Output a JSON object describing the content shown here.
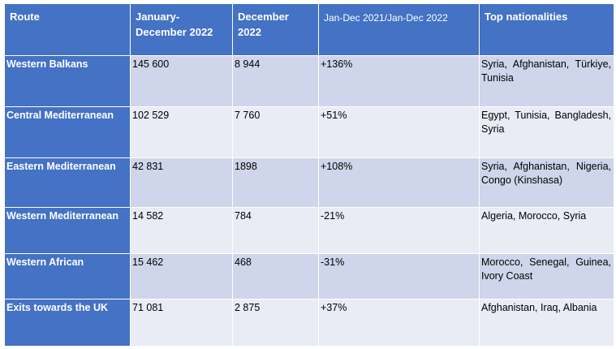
{
  "headers": {
    "route": "Route",
    "jan_dec": "January-December 2022",
    "dec": "December 2022",
    "change": "Jan-Dec 2021/Jan-Dec 2022",
    "nationalities": "Top nationalities"
  },
  "rows": [
    {
      "route": "Western Balkans",
      "jan_dec": "145 600",
      "dec": "8 944",
      "change": "+136%",
      "nationalities": "Syria, Afghanistan, Türkiye, Tunisia"
    },
    {
      "route": "Central Mediterranean",
      "jan_dec": "102 529",
      "dec": "7 760",
      "change": "+51%",
      "nationalities": "Egypt, Tunisia, Bangladesh, Syria"
    },
    {
      "route": "Eastern Mediterranean",
      "jan_dec": "42 831",
      "dec": "1898",
      "change": "+108%",
      "nationalities": "Syria, Afghanistan, Nigeria, Congo (Kinshasa)"
    },
    {
      "route": "Western Mediterranean",
      "jan_dec": "14 582",
      "dec": "784",
      "change": "-21%",
      "nationalities": "Algeria, Morocco, Syria"
    },
    {
      "route": "Western African",
      "jan_dec": "15 462",
      "dec": "468",
      "change": "-31%",
      "nationalities": "Morocco, Senegal, Guinea, Ivory Coast"
    },
    {
      "route": "Exits towards the UK",
      "jan_dec": "71 081",
      "dec": "2 875",
      "change": "+37%",
      "nationalities": "Afghanistan, Iraq, Albania"
    }
  ]
}
